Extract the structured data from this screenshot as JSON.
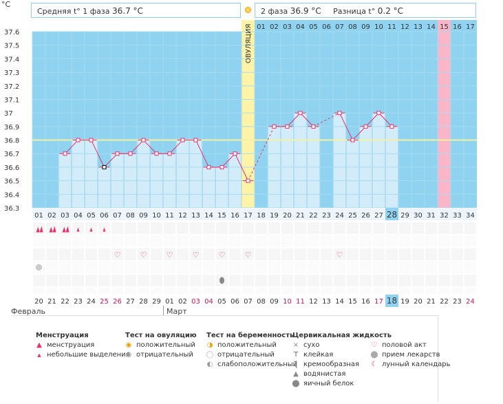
{
  "header": {
    "unit": "°C",
    "phase1_label": "Средняя t° 1 фаза",
    "phase1_value": "36.7 °C",
    "phase2_label": "2 фаза",
    "phase2_value": "36.9 °C",
    "diff_label": "Разница t°",
    "diff_value": "0.2 °C",
    "ovulation_label": "ОВУЛЯЦИЯ"
  },
  "chart_data": {
    "type": "bar",
    "ylim": [
      36.3,
      37.6
    ],
    "yticks": [
      "36.3",
      "36.4",
      "36.5",
      "36.6",
      "36.7",
      "36.8",
      "36.9",
      "37",
      "37.1",
      "37.2",
      "37.3",
      "37.4",
      "37.5",
      "37.6"
    ],
    "coverline": 36.8,
    "ovulation_day": 17,
    "highlight_day": 32,
    "current_day": 28,
    "phase_top_labels": [
      "01",
      "02",
      "03",
      "04",
      "05",
      "06",
      "07",
      "08",
      "09",
      "10",
      "11",
      "12",
      "13",
      "14",
      "15",
      "16",
      "17"
    ],
    "cycle_days": [
      "01",
      "02",
      "03",
      "04",
      "05",
      "06",
      "07",
      "08",
      "09",
      "10",
      "11",
      "12",
      "13",
      "14",
      "15",
      "16",
      "17",
      "18",
      "19",
      "20",
      "21",
      "22",
      "23",
      "24",
      "25",
      "26",
      "27",
      "28",
      "29",
      "30",
      "31",
      "32",
      "33",
      "34"
    ],
    "dates": [
      "20",
      "21",
      "22",
      "23",
      "24",
      "25",
      "26",
      "27",
      "28",
      "29",
      "01",
      "02",
      "03",
      "04",
      "05",
      "06",
      "07",
      "08",
      "09",
      "10",
      "11",
      "12",
      "13",
      "14",
      "15",
      "16",
      "17",
      "18",
      "19",
      "20",
      "21",
      "22",
      "23",
      "24"
    ],
    "date_colors": [
      "#333",
      "#333",
      "#333",
      "#333",
      "#333",
      "#c2185b",
      "#c2185b",
      "#333",
      "#333",
      "#333",
      "#333",
      "#333",
      "#c2185b",
      "#c2185b",
      "#333",
      "#333",
      "#333",
      "#333",
      "#333",
      "#c2185b",
      "#c2185b",
      "#333",
      "#333",
      "#333",
      "#333",
      "#333",
      "#c2185b",
      "#333",
      "#333",
      "#333",
      "#333",
      "#333",
      "#333",
      "#c2185b"
    ],
    "temperatures": [
      {
        "day": 3,
        "value": 36.7
      },
      {
        "day": 4,
        "value": 36.8
      },
      {
        "day": 5,
        "value": 36.8
      },
      {
        "day": 6,
        "value": 36.6
      },
      {
        "day": 7,
        "value": 36.7
      },
      {
        "day": 8,
        "value": 36.7
      },
      {
        "day": 9,
        "value": 36.8
      },
      {
        "day": 10,
        "value": 36.7
      },
      {
        "day": 11,
        "value": 36.7
      },
      {
        "day": 12,
        "value": 36.8
      },
      {
        "day": 13,
        "value": 36.8
      },
      {
        "day": 14,
        "value": 36.6
      },
      {
        "day": 15,
        "value": 36.6
      },
      {
        "day": 16,
        "value": 36.7
      },
      {
        "day": 17,
        "value": 36.5
      },
      {
        "day": 19,
        "value": 36.9
      },
      {
        "day": 20,
        "value": 36.9
      },
      {
        "day": 21,
        "value": 37.0
      },
      {
        "day": 22,
        "value": 36.9
      },
      {
        "day": 24,
        "value": 37.0
      },
      {
        "day": 25,
        "value": 36.8
      },
      {
        "day": 26,
        "value": 36.9
      },
      {
        "day": 27,
        "value": 37.0
      },
      {
        "day": 28,
        "value": 36.9
      }
    ],
    "menstruation": [
      {
        "day": 1,
        "type": "heavy"
      },
      {
        "day": 2,
        "type": "heavy"
      },
      {
        "day": 3,
        "type": "heavy"
      },
      {
        "day": 4,
        "type": "light"
      },
      {
        "day": 5,
        "type": "light"
      },
      {
        "day": 6,
        "type": "light"
      }
    ],
    "intercourse_days": [
      7,
      9,
      11,
      13,
      15,
      17,
      24
    ],
    "medication_days": [
      1
    ],
    "mucus": [
      {
        "day": 15,
        "type": "egg-white"
      }
    ]
  },
  "months": {
    "february": "Февраль",
    "march": "Март"
  },
  "legend": {
    "menstruation": {
      "title": "Менструация",
      "items": [
        "менструация",
        "небольшие выделения"
      ]
    },
    "ovulation_test": {
      "title": "Тест на овуляцию",
      "items": [
        "положительный",
        "отрицательный"
      ]
    },
    "pregnancy_test": {
      "title": "Тест на беременность",
      "items": [
        "положительный",
        "отрицательный",
        "слабоположительный"
      ]
    },
    "cervical_fluid": {
      "title": "Цервикальная жидкость",
      "items": [
        "сухо",
        "клейкая",
        "кремообразная",
        "водянистая",
        "яичный белок"
      ]
    },
    "other": {
      "items": [
        "половой акт",
        "прием лекарств",
        "лунный календарь"
      ]
    }
  },
  "colors": {
    "sky": "#8fd3f0",
    "bar": "#d2ecfa",
    "bar_edge": "#a9d6ef",
    "line": "#e8306a",
    "coverline": "#f3f0a0",
    "ovulation": "#fff3a8",
    "highlight": "#f9b6c9",
    "current": "#8fd3f0"
  }
}
